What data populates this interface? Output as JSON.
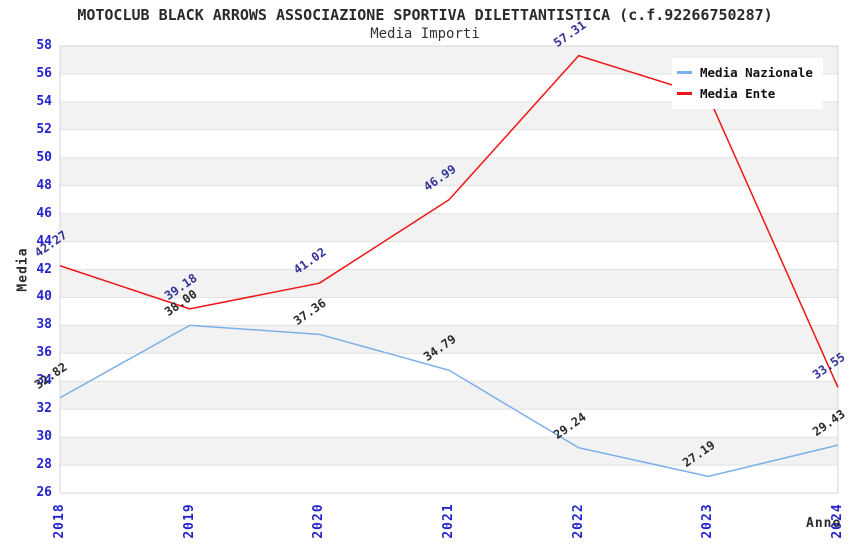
{
  "title": "MOTOCLUB BLACK ARROWS ASSOCIAZIONE SPORTIVA DILETTANTISTICA (c.f.92266750287)",
  "subtitle": "Media Importi",
  "axes": {
    "y_title": "Media",
    "x_title": "Anno",
    "y_tick_labels": [
      "58",
      "56",
      "54",
      "52",
      "50",
      "48",
      "46",
      "44",
      "42",
      "40",
      "38",
      "36",
      "34",
      "32",
      "30",
      "28",
      "26"
    ],
    "x_tick_labels": [
      "2018",
      "2019",
      "2020",
      "2021",
      "2022",
      "2023",
      "2024"
    ]
  },
  "legend": {
    "position": "top-right",
    "items": [
      {
        "label": "Media Nazionale",
        "color": "#7db0e8"
      },
      {
        "label": "Media Ente",
        "color": "#ee1515"
      }
    ]
  },
  "chart_data": {
    "type": "line",
    "title": "Media Importi",
    "xlabel": "Anno",
    "ylabel": "Media",
    "x": [
      "2018",
      "2019",
      "2020",
      "2021",
      "2022",
      "2023",
      "2024"
    ],
    "series": [
      {
        "name": "Media Nazionale",
        "color": "#7db0e8",
        "label_color": "#2b2b2b",
        "values": [
          32.82,
          38.0,
          37.36,
          34.79,
          29.24,
          27.19,
          29.43
        ],
        "point_labels": [
          "32.82",
          "38.00",
          "37.36",
          "34.79",
          "29.24",
          "27.19",
          "29.43"
        ]
      },
      {
        "name": "Media Ente",
        "color": "#ee1515",
        "label_color": "#333399",
        "values": [
          42.27,
          39.18,
          41.02,
          46.99,
          57.31,
          54.4,
          33.55
        ],
        "point_labels": [
          "42.27",
          "39.18",
          "41.02",
          "46.99",
          "57.31",
          null,
          "33.55"
        ]
      }
    ],
    "ylim": [
      26,
      58
    ],
    "ytick_step": 2,
    "grid": true,
    "band_colors": [
      "#f2f2f2",
      "#ffffff"
    ],
    "legend_position": "top-right"
  },
  "colors": {
    "tick_label": "#2424cd",
    "grid_line": "#e2e2e2",
    "plot_border": "#d6d6d6",
    "band_gray": "#f2f2f2",
    "title_text": "#2a2a2a"
  }
}
